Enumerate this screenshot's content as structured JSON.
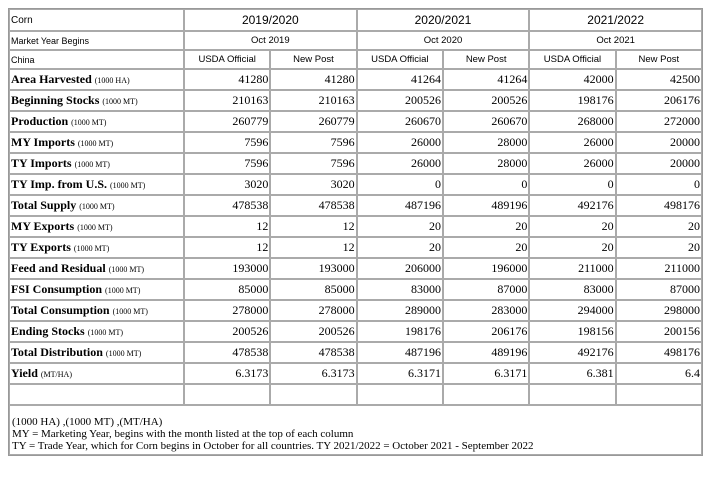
{
  "header": {
    "commodity": "Corn",
    "market_year_label": "Market Year Begins",
    "country": "China",
    "years": [
      {
        "label": "2019/2020",
        "begins": "Oct 2019"
      },
      {
        "label": "2020/2021",
        "begins": "Oct 2020"
      },
      {
        "label": "2021/2022",
        "begins": "Oct 2021"
      }
    ],
    "col_usda": "USDA Official",
    "col_post": "New Post"
  },
  "rows": [
    {
      "name": "Area Harvested",
      "unit": "(1000 HA)",
      "values": [
        "41280",
        "41280",
        "41264",
        "41264",
        "42000",
        "42500"
      ]
    },
    {
      "name": "Beginning Stocks",
      "unit": "(1000 MT)",
      "values": [
        "210163",
        "210163",
        "200526",
        "200526",
        "198176",
        "206176"
      ]
    },
    {
      "name": "Production",
      "unit": "(1000 MT)",
      "values": [
        "260779",
        "260779",
        "260670",
        "260670",
        "268000",
        "272000"
      ]
    },
    {
      "name": "MY Imports",
      "unit": "(1000 MT)",
      "values": [
        "7596",
        "7596",
        "26000",
        "28000",
        "26000",
        "20000"
      ]
    },
    {
      "name": "TY Imports",
      "unit": "(1000 MT)",
      "values": [
        "7596",
        "7596",
        "26000",
        "28000",
        "26000",
        "20000"
      ]
    },
    {
      "name": "TY Imp. from U.S.",
      "unit": "(1000 MT)",
      "values": [
        "3020",
        "3020",
        "0",
        "0",
        "0",
        "0"
      ]
    },
    {
      "name": "Total Supply",
      "unit": "(1000 MT)",
      "values": [
        "478538",
        "478538",
        "487196",
        "489196",
        "492176",
        "498176"
      ]
    },
    {
      "name": "MY Exports",
      "unit": "(1000 MT)",
      "values": [
        "12",
        "12",
        "20",
        "20",
        "20",
        "20"
      ]
    },
    {
      "name": "TY Exports",
      "unit": "(1000 MT)",
      "values": [
        "12",
        "12",
        "20",
        "20",
        "20",
        "20"
      ]
    },
    {
      "name": "Feed and Residual",
      "unit": "(1000 MT)",
      "values": [
        "193000",
        "193000",
        "206000",
        "196000",
        "211000",
        "211000"
      ]
    },
    {
      "name": "FSI Consumption",
      "unit": "(1000 MT)",
      "values": [
        "85000",
        "85000",
        "83000",
        "87000",
        "83000",
        "87000"
      ]
    },
    {
      "name": "Total Consumption",
      "unit": "(1000 MT)",
      "values": [
        "278000",
        "278000",
        "289000",
        "283000",
        "294000",
        "298000"
      ]
    },
    {
      "name": "Ending Stocks",
      "unit": "(1000 MT)",
      "values": [
        "200526",
        "200526",
        "198176",
        "206176",
        "198156",
        "200156"
      ]
    },
    {
      "name": "Total Distribution",
      "unit": "(1000 MT)",
      "values": [
        "478538",
        "478538",
        "487196",
        "489196",
        "492176",
        "498176"
      ]
    },
    {
      "name": "Yield",
      "unit": "(MT/HA)",
      "values": [
        "6.3173",
        "6.3173",
        "6.3171",
        "6.3171",
        "6.381",
        "6.4"
      ]
    }
  ],
  "notes": [
    "(1000 HA) ,(1000 MT) ,(MT/HA)",
    "MY = Marketing Year, begins with the month listed at the top of each column",
    "TY = Trade Year, which for Corn begins in October for all countries. TY 2021/2022 = October 2021 - September 2022"
  ]
}
